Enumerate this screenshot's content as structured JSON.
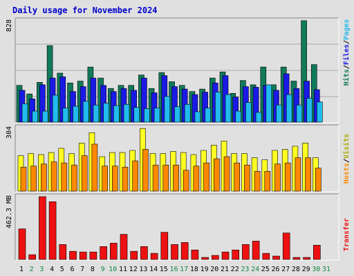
{
  "title": "Daily usage for November 2024",
  "colors": {
    "hits": "#117a5a",
    "files": "#1a1ae6",
    "pages": "#22bbee",
    "visits": "#ffff22",
    "hosts": "#ff8800",
    "transfer": "#ee1111",
    "weekday": "#000000",
    "weekend": "#118844",
    "title": "#0000cc"
  },
  "chart_data": [
    {
      "type": "bar",
      "panel": "hits-files-pages",
      "ymax_label": "828",
      "ylim": [
        0,
        828
      ],
      "categories": [
        "1",
        "2",
        "3",
        "4",
        "5",
        "6",
        "7",
        "8",
        "9",
        "10",
        "11",
        "12",
        "13",
        "14",
        "15",
        "16",
        "17",
        "18",
        "19",
        "20",
        "21",
        "22",
        "23",
        "24",
        "25",
        "26",
        "27",
        "28",
        "29",
        "30",
        "31"
      ],
      "series": [
        {
          "name": "Hits",
          "values": [
            300,
            230,
            325,
            625,
            400,
            320,
            335,
            450,
            360,
            275,
            300,
            300,
            385,
            275,
            405,
            330,
            300,
            250,
            270,
            360,
            410,
            235,
            340,
            305,
            450,
            305,
            450,
            335,
            828,
            470,
            0
          ]
        },
        {
          "name": "Files",
          "values": [
            260,
            190,
            305,
            360,
            370,
            250,
            290,
            360,
            300,
            250,
            275,
            260,
            360,
            240,
            380,
            290,
            270,
            225,
            245,
            320,
            380,
            205,
            290,
            285,
            300,
            260,
            395,
            275,
            335,
            265,
            0
          ]
        },
        {
          "name": "Pages",
          "values": [
            150,
            90,
            90,
            220,
            115,
            130,
            170,
            140,
            155,
            135,
            145,
            120,
            110,
            115,
            210,
            125,
            145,
            85,
            115,
            245,
            225,
            90,
            160,
            80,
            305,
            140,
            225,
            140,
            195,
            165,
            0
          ]
        }
      ]
    },
    {
      "type": "bar",
      "panel": "visits-hosts",
      "ymax_label": "304",
      "ylim": [
        0,
        304
      ],
      "categories": [
        "1",
        "2",
        "3",
        "4",
        "5",
        "6",
        "7",
        "8",
        "9",
        "10",
        "11",
        "12",
        "13",
        "14",
        "15",
        "16",
        "17",
        "18",
        "19",
        "20",
        "21",
        "22",
        "23",
        "24",
        "25",
        "26",
        "27",
        "28",
        "29",
        "30",
        "31"
      ],
      "series": [
        {
          "name": "Visits",
          "values": [
            170,
            180,
            175,
            185,
            205,
            180,
            230,
            280,
            165,
            185,
            185,
            195,
            300,
            180,
            180,
            190,
            185,
            175,
            195,
            220,
            240,
            180,
            180,
            160,
            150,
            195,
            200,
            215,
            230,
            160,
            0
          ]
        },
        {
          "name": "Hosts",
          "values": [
            115,
            120,
            130,
            140,
            135,
            125,
            170,
            225,
            120,
            120,
            115,
            145,
            200,
            125,
            125,
            125,
            100,
            120,
            135,
            155,
            165,
            135,
            125,
            95,
            95,
            130,
            135,
            160,
            160,
            110,
            0
          ]
        }
      ]
    },
    {
      "type": "bar",
      "panel": "transfer",
      "ymax_label": "462.3 MB",
      "ylim": [
        0,
        462.3
      ],
      "categories": [
        "1",
        "2",
        "3",
        "4",
        "5",
        "6",
        "7",
        "8",
        "9",
        "10",
        "11",
        "12",
        "13",
        "14",
        "15",
        "16",
        "17",
        "18",
        "19",
        "20",
        "21",
        "22",
        "23",
        "24",
        "25",
        "26",
        "27",
        "28",
        "29",
        "30",
        "31"
      ],
      "series": [
        {
          "name": "Transfer",
          "values": [
            225,
            35,
            462.3,
            425,
            110,
            60,
            55,
            55,
            95,
            120,
            185,
            60,
            95,
            45,
            200,
            110,
            125,
            70,
            15,
            30,
            55,
            70,
            110,
            135,
            45,
            25,
            195,
            15,
            15,
            105,
            0
          ]
        }
      ]
    }
  ],
  "right_labels": {
    "top": [
      "Hits",
      "/",
      "Files",
      "/",
      "Pages"
    ],
    "middle": [
      "Hosts",
      "/",
      "Visits"
    ],
    "bottom": [
      "Transfer"
    ]
  }
}
